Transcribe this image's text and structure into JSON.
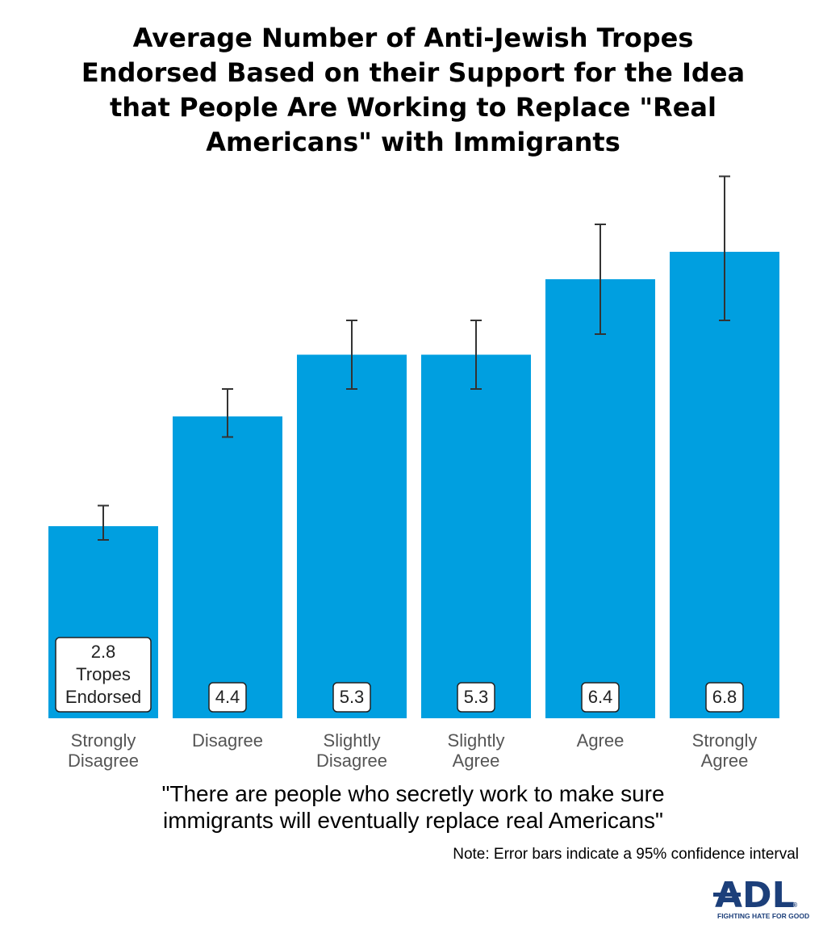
{
  "chart_data": {
    "type": "bar",
    "title_lines": [
      "Average Number of Anti-Jewish Tropes",
      "Endorsed Based on their Support for the Idea",
      "that People Are Working to Replace \"Real",
      "Americans\" with Immigrants"
    ],
    "categories": [
      [
        "Strongly",
        "Disagree"
      ],
      [
        "Disagree"
      ],
      [
        "Slightly",
        "Disagree"
      ],
      [
        "Slightly",
        "Agree"
      ],
      [
        "Agree"
      ],
      [
        "Strongly",
        "Agree"
      ]
    ],
    "values": [
      2.8,
      4.4,
      5.3,
      5.3,
      6.4,
      6.8
    ],
    "error_bars": [
      [
        2.6,
        3.1
      ],
      [
        4.1,
        4.8
      ],
      [
        4.8,
        5.8
      ],
      [
        4.8,
        5.8
      ],
      [
        5.6,
        7.2
      ],
      [
        5.8,
        7.9
      ]
    ],
    "value_labels": [
      [
        "2.8",
        "Tropes",
        "Endorsed"
      ],
      [
        "4.4"
      ],
      [
        "5.3"
      ],
      [
        "5.3"
      ],
      [
        "6.4"
      ],
      [
        "6.8"
      ]
    ],
    "xlabel_lines": [
      "\"There are people who secretly work to make sure",
      "immigrants will eventually replace real Americans\""
    ],
    "note": "Note: Error bars indicate a 95% confidence interval",
    "ylim": [
      0,
      8
    ],
    "bar_color": "#009fe0",
    "error_color": "#333333"
  },
  "logo": {
    "text": "ADL",
    "tagline": "FIGHTING HATE FOR GOOD",
    "registered": "®",
    "color": "#1c3f7a"
  }
}
